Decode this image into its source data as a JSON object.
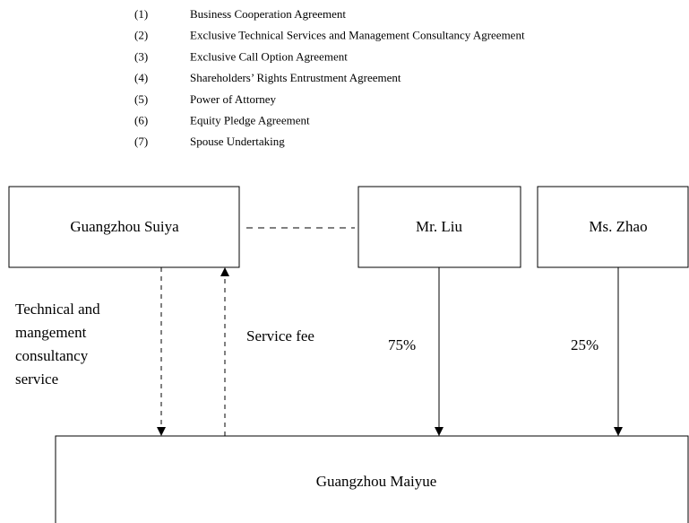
{
  "agreements": [
    {
      "number": "(1)",
      "name": "Business Cooperation Agreement"
    },
    {
      "number": "(2)",
      "name": "Exclusive Technical Services and Management Consultancy Agreement"
    },
    {
      "number": "(3)",
      "name": "Exclusive Call Option Agreement"
    },
    {
      "number": "(4)",
      "name": "Shareholders’ Rights Entrustment Agreement"
    },
    {
      "number": "(5)",
      "name": "Power of Attorney"
    },
    {
      "number": "(6)",
      "name": "Equity Pledge Agreement"
    },
    {
      "number": "(7)",
      "name": "Spouse Undertaking"
    }
  ],
  "nodes": [
    {
      "label": "Guangzhou Suiya"
    },
    {
      "label": "Mr. Liu"
    },
    {
      "label": "Ms. Zhao"
    },
    {
      "label": "Guangzhou Maiyue"
    }
  ],
  "edges": [
    {
      "label": [
        "Technical and",
        "mangement",
        "consultancy",
        "service"
      ]
    },
    {
      "label": "Service fee"
    },
    {
      "label": "75%"
    },
    {
      "label": "25%"
    }
  ]
}
